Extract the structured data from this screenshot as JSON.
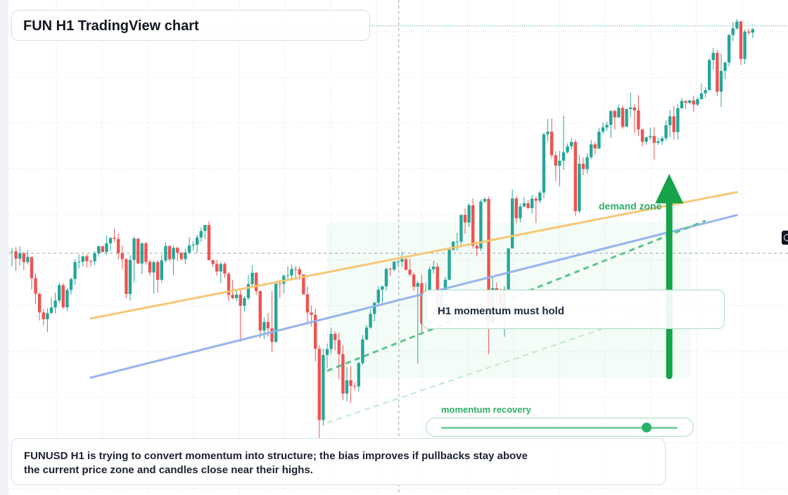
{
  "title": "FUN H1 TradingView chart",
  "callout": "H1 momentum must hold",
  "note": "FUNUSD H1 is trying to convert momentum into structure; the bias improves if pullbacks stay above the current price zone and candles close near their highs.",
  "demand_label": "demand zone",
  "momentum_label": "momentum recovery",
  "momentum_level": 0.87,
  "icons": [
    "arrow-up-icon",
    "settings-icon"
  ],
  "colors": {
    "bull": "#26a69a",
    "bear": "#ef5350",
    "trend_orange": "#f5c46e",
    "trend_blue": "#8fb0ee",
    "accent_green": "#16a34a",
    "grid": "#e4e7ec"
  },
  "chart_data": {
    "type": "candlestick",
    "timeframe": "H1",
    "symbol": "FUNUSD",
    "grid": true,
    "candles": [
      [
        70.18,
        70.47,
        68.96,
        70.18
      ],
      [
        70.18,
        70.54,
        68.56,
        69.57
      ],
      [
        69.57,
        70.59,
        69.01,
        70.02
      ],
      [
        70.02,
        70.14,
        68.63,
        69.29
      ],
      [
        69.29,
        70.29,
        69.09,
        69.72
      ],
      [
        69.72,
        69.72,
        67.02,
        67.96
      ],
      [
        67.96,
        68.36,
        65.81,
        66.67
      ],
      [
        66.67,
        66.78,
        64.46,
        65.12
      ],
      [
        65.12,
        65.41,
        64.03,
        64.56
      ],
      [
        64.56,
        65.46,
        63.48,
        65.06
      ],
      [
        65.06,
        66.32,
        65.06,
        65.53
      ],
      [
        65.53,
        66.77,
        65.05,
        66.11
      ],
      [
        66.11,
        67.59,
        65.89,
        67.38
      ],
      [
        67.38,
        67.55,
        65.42,
        65.55
      ],
      [
        65.55,
        67.14,
        65.25,
        66.98
      ],
      [
        66.98,
        68.0,
        66.6,
        67.89
      ],
      [
        67.89,
        69.53,
        67.42,
        69.29
      ],
      [
        69.29,
        69.91,
        68.75,
        69.32
      ],
      [
        69.32,
        69.86,
        68.94,
        69.77
      ],
      [
        69.77,
        69.97,
        68.84,
        69.38
      ],
      [
        69.38,
        69.47,
        68.92,
        69.36
      ],
      [
        69.36,
        70.19,
        69.04,
        70.03
      ],
      [
        70.03,
        70.66,
        69.74,
        70.6
      ],
      [
        70.6,
        70.63,
        70.12,
        70.12
      ],
      [
        70.12,
        71.51,
        69.88,
        70.84
      ],
      [
        70.84,
        71.3,
        70.22,
        71.3
      ],
      [
        71.3,
        72.06,
        70.96,
        71.21
      ],
      [
        71.21,
        71.66,
        69.51,
        70.04
      ],
      [
        70.04,
        70.65,
        68.71,
        69.54
      ],
      [
        69.54,
        69.62,
        66.3,
        66.65
      ],
      [
        66.65,
        69.87,
        66.1,
        69.47
      ],
      [
        69.47,
        71.42,
        67.59,
        71.24
      ],
      [
        71.24,
        71.25,
        69.17,
        69.17
      ],
      [
        69.17,
        70.94,
        68.29,
        70.84
      ],
      [
        70.84,
        70.98,
        69.07,
        69.31
      ],
      [
        69.31,
        69.49,
        68.17,
        68.43
      ],
      [
        68.43,
        69.43,
        66.66,
        69.29
      ],
      [
        69.29,
        69.43,
        66.76,
        67.82
      ],
      [
        67.82,
        69.9,
        67.57,
        69.43
      ],
      [
        69.43,
        70.93,
        69.25,
        70.62
      ],
      [
        70.62,
        70.69,
        69.34,
        69.53
      ],
      [
        69.53,
        70.66,
        68.2,
        70.47
      ],
      [
        70.47,
        70.57,
        69.38,
        70.07
      ],
      [
        70.07,
        70.1,
        69.42,
        69.54
      ],
      [
        69.54,
        70.4,
        69.13,
        70.09
      ],
      [
        70.09,
        71.37,
        69.96,
        70.66
      ],
      [
        70.66,
        71.0,
        70.27,
        70.73
      ],
      [
        70.73,
        71.55,
        70.05,
        71.33
      ],
      [
        71.33,
        72.16,
        70.96,
        71.87
      ],
      [
        71.87,
        72.36,
        71.21,
        72.36
      ],
      [
        72.36,
        72.67,
        69.45,
        69.45
      ],
      [
        69.45,
        69.46,
        68.9,
        69.14
      ],
      [
        69.14,
        69.48,
        68.16,
        68.51
      ],
      [
        68.51,
        69.28,
        67.54,
        69.13
      ],
      [
        69.13,
        69.29,
        67.99,
        68.33
      ],
      [
        68.33,
        68.45,
        66.06,
        66.58
      ],
      [
        66.58,
        67.8,
        66.21,
        66.31
      ],
      [
        66.31,
        66.89,
        66.07,
        66.6
      ],
      [
        66.6,
        67.05,
        62.68,
        65.68
      ],
      [
        65.68,
        66.48,
        65.21,
        66.31
      ],
      [
        66.31,
        68.24,
        66.14,
        67.47
      ],
      [
        67.47,
        69.03,
        67.31,
        68.41
      ],
      [
        68.41,
        68.43,
        66.6,
        66.9
      ],
      [
        66.9,
        66.91,
        62.99,
        63.62
      ],
      [
        63.62,
        64.72,
        62.91,
        64.33
      ],
      [
        64.33,
        65.08,
        63.13,
        63.81
      ],
      [
        63.81,
        66.9,
        61.84,
        62.68
      ],
      [
        62.68,
        67.72,
        62.62,
        67.51
      ],
      [
        67.51,
        67.82,
        66.31,
        67.5
      ],
      [
        67.5,
        68.26,
        66.68,
        68.15
      ],
      [
        68.15,
        68.94,
        67.76,
        68.2
      ],
      [
        68.2,
        69.08,
        67.78,
        68.72
      ],
      [
        68.72,
        68.99,
        67.83,
        68.7
      ],
      [
        68.7,
        68.91,
        67.83,
        68.26
      ],
      [
        68.26,
        68.27,
        66.58,
        66.62
      ],
      [
        66.62,
        67.28,
        64.14,
        65.12
      ],
      [
        65.12,
        65.7,
        63.95,
        64.92
      ],
      [
        64.92,
        65.44,
        61.05,
        62.11
      ],
      [
        62.11,
        62.43,
        53.27,
        56.21
      ],
      [
        56.21,
        62.14,
        55.73,
        61.6
      ],
      [
        61.6,
        62.54,
        60.54,
        62.09
      ],
      [
        62.09,
        63.86,
        61.7,
        63.34
      ],
      [
        63.34,
        63.56,
        61.97,
        62.84
      ],
      [
        62.84,
        63.42,
        59.57,
        61.67
      ],
      [
        61.67,
        62.4,
        57.84,
        58.4
      ],
      [
        58.4,
        60.59,
        57.77,
        59.51
      ],
      [
        59.51,
        60.67,
        57.63,
        59.03
      ],
      [
        59.03,
        59.29,
        58.65,
        58.99
      ],
      [
        58.99,
        61.08,
        58.59,
        60.93
      ],
      [
        60.93,
        63.25,
        60.77,
        62.88
      ],
      [
        62.88,
        64.1,
        62.8,
        63.87
      ],
      [
        63.87,
        65.34,
        63.77,
        65.0
      ],
      [
        65.0,
        65.98,
        64.37,
        65.93
      ],
      [
        65.93,
        67.28,
        65.81,
        67.0
      ],
      [
        67.0,
        67.32,
        65.92,
        67.29
      ],
      [
        67.29,
        68.84,
        66.94,
        68.73
      ],
      [
        68.73,
        68.84,
        68.14,
        68.67
      ],
      [
        68.67,
        69.38,
        68.53,
        69.33
      ],
      [
        69.33,
        69.39,
        69.03,
        69.33
      ],
      [
        69.33,
        70.13,
        68.9,
        69.54
      ],
      [
        69.54,
        69.81,
        68.6,
        68.66
      ],
      [
        68.66,
        69.55,
        68.12,
        68.26
      ],
      [
        68.26,
        68.42,
        66.91,
        67.25
      ],
      [
        67.25,
        67.72,
        60.88,
        67.55
      ],
      [
        67.55,
        68.22,
        63.5,
        64.18
      ],
      [
        64.18,
        67.61,
        63.98,
        66.9
      ],
      [
        66.9,
        68.93,
        66.87,
        68.7
      ],
      [
        68.7,
        69.39,
        68.33,
        68.91
      ],
      [
        68.91,
        69.21,
        64.86,
        65.18
      ],
      [
        65.18,
        66.94,
        65.03,
        66.89
      ],
      [
        66.89,
        68.07,
        66.89,
        67.83
      ],
      [
        67.83,
        70.38,
        67.77,
        70.31
      ],
      [
        70.31,
        71.04,
        70.25,
        70.98
      ],
      [
        70.98,
        71.72,
        70.24,
        70.99
      ],
      [
        70.99,
        73.23,
        70.72,
        73.2
      ],
      [
        73.2,
        73.72,
        71.64,
        72.57
      ],
      [
        72.57,
        74.18,
        72.18,
        74.0
      ],
      [
        74.0,
        74.58,
        70.42,
        70.64
      ],
      [
        70.64,
        70.97,
        69.79,
        70.42
      ],
      [
        70.42,
        74.48,
        70.21,
        74.31
      ],
      [
        74.31,
        74.66,
        74.16,
        74.52
      ],
      [
        74.52,
        74.71,
        61.66,
        64.18
      ],
      [
        64.18,
        68.02,
        64.11,
        67.13
      ],
      [
        67.13,
        67.59,
        65.88,
        66.81
      ],
      [
        66.81,
        67.09,
        64.94,
        65.17
      ],
      [
        65.17,
        67.28,
        63.11,
        67.03
      ],
      [
        67.03,
        70.47,
        67.03,
        70.42
      ],
      [
        70.42,
        75.3,
        70.41,
        74.56
      ],
      [
        74.56,
        74.76,
        72.51,
        72.92
      ],
      [
        72.92,
        74.12,
        72.57,
        73.9
      ],
      [
        73.9,
        74.68,
        73.84,
        74.17
      ],
      [
        74.17,
        74.44,
        73.69,
        73.76
      ],
      [
        73.76,
        74.87,
        73.29,
        74.55
      ],
      [
        74.55,
        74.76,
        72.52,
        74.38
      ],
      [
        74.38,
        75.2,
        74.18,
        75.05
      ],
      [
        75.05,
        80.04,
        74.56,
        79.87
      ],
      [
        79.87,
        81.15,
        79.28,
        80.09
      ],
      [
        80.09,
        81.19,
        77.87,
        78.14
      ],
      [
        78.14,
        78.46,
        75.99,
        77.28
      ],
      [
        77.28,
        78.51,
        75.57,
        77.69
      ],
      [
        77.69,
        81.45,
        76.93,
        78.39
      ],
      [
        78.39,
        79.13,
        78.27,
        78.88
      ],
      [
        78.88,
        79.57,
        78.6,
        79.24
      ],
      [
        79.24,
        79.43,
        73.13,
        73.51
      ],
      [
        73.51,
        78.17,
        73.35,
        77.44
      ],
      [
        77.44,
        77.96,
        76.49,
        76.99
      ],
      [
        76.99,
        78.31,
        76.61,
        77.98
      ],
      [
        77.98,
        79.42,
        77.81,
        79.04
      ],
      [
        79.04,
        79.25,
        78.21,
        78.71
      ],
      [
        78.71,
        80.4,
        78.65,
        80.09
      ],
      [
        80.09,
        80.86,
        79.88,
        80.45
      ],
      [
        80.45,
        80.94,
        80.18,
        80.65
      ],
      [
        80.65,
        81.85,
        79.58,
        81.81
      ],
      [
        81.81,
        81.91,
        80.24,
        81.28
      ],
      [
        81.28,
        82.35,
        81.25,
        82.06
      ],
      [
        82.06,
        82.24,
        80.34,
        80.5
      ],
      [
        80.5,
        82.02,
        80.49,
        81.97
      ],
      [
        81.97,
        83.32,
        81.28,
        82.1
      ],
      [
        82.1,
        82.37,
        79.96,
        81.86
      ],
      [
        81.86,
        83.13,
        79.73,
        80.29
      ],
      [
        80.29,
        80.3,
        78.89,
        79.26
      ],
      [
        79.26,
        79.69,
        79.02,
        79.63
      ],
      [
        79.63,
        80.41,
        79.37,
        79.73
      ],
      [
        79.73,
        80.49,
        77.8,
        79.16
      ],
      [
        79.16,
        79.59,
        78.97,
        79.29
      ],
      [
        79.29,
        79.7,
        78.99,
        79.55
      ],
      [
        79.55,
        81.02,
        79.35,
        80.63
      ],
      [
        80.63,
        81.9,
        79.63,
        81.36
      ],
      [
        81.36,
        82.24,
        79.45,
        80.06
      ],
      [
        80.06,
        82.36,
        79.42,
        82.04
      ],
      [
        82.04,
        82.88,
        81.98,
        82.64
      ],
      [
        82.64,
        82.69,
        81.98,
        82.48
      ],
      [
        82.48,
        82.72,
        82.36,
        82.68
      ],
      [
        82.68,
        83.08,
        81.71,
        82.34
      ],
      [
        82.34,
        82.95,
        82.21,
        82.79
      ],
      [
        82.79,
        84.1,
        82.73,
        83.27
      ],
      [
        83.27,
        83.79,
        82.92,
        83.54
      ],
      [
        83.54,
        86.18,
        83.49,
        86.02
      ],
      [
        86.02,
        87.04,
        85.23,
        86.62
      ],
      [
        86.62,
        86.87,
        83.06,
        83.41
      ],
      [
        83.41,
        86.57,
        82.13,
        85.12
      ],
      [
        85.12,
        85.88,
        84.43,
        85.82
      ],
      [
        85.82,
        88.2,
        85.51,
        88.1
      ],
      [
        88.1,
        89.18,
        87.59,
        88.65
      ],
      [
        88.65,
        89.42,
        88.54,
        89.22
      ],
      [
        89.22,
        89.26,
        85.63,
        86.12
      ],
      [
        86.12,
        88.56,
        85.69,
        88.38
      ],
      [
        88.38,
        88.63,
        88.09,
        88.3
      ],
      [
        88.3,
        88.66,
        87.84,
        88.59
      ]
    ],
    "trendlines": [
      {
        "name": "",
        "color": "#f5c46e",
        "start": [
          20,
          64.62
        ],
        "end": [
          184,
          75.09
        ]
      },
      {
        "name": "",
        "color": "#8fb0ee",
        "start": [
          20,
          59.72
        ],
        "end": [
          184,
          73.18
        ]
      }
    ],
    "zone": {
      "label": "demand zone",
      "x_range": [
        80,
        150
      ],
      "y_range": [
        59.7,
        72.6
      ]
    },
    "dashed_guides": [
      {
        "color": "#5cc48a",
        "start": [
          80,
          60.28
        ],
        "end": [
          176,
          72.72
        ]
      },
      {
        "color": "#bfe8cf",
        "start": [
          80,
          55.99
        ],
        "end": [
          176,
          66.67
        ]
      }
    ],
    "arrow": {
      "x": 167,
      "from": 59.86,
      "to": 76.6
    },
    "current_price_line": 88.86,
    "crosshair": {
      "x": 98,
      "y": 70.03
    },
    "y_range": [
      50.0,
      91.0
    ]
  }
}
